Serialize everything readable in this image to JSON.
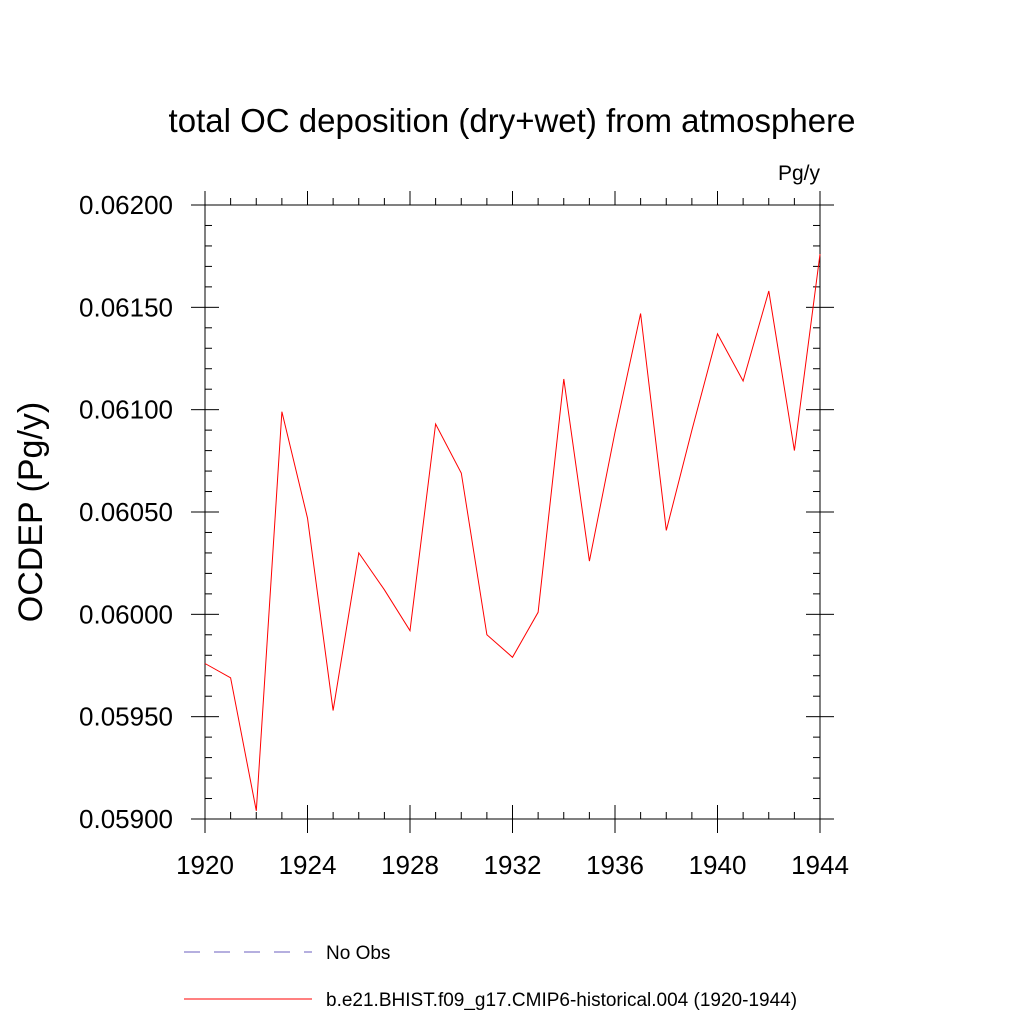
{
  "chart_data": {
    "type": "line",
    "title": "total OC deposition (dry+wet) from atmosphere",
    "units": "Pg/y",
    "ylabel": "OCDEP  (Pg/y)",
    "xlabel": "",
    "xlim": [
      1920,
      1944
    ],
    "ylim": [
      0.059,
      0.062
    ],
    "x_ticks": [
      1920,
      1924,
      1928,
      1932,
      1936,
      1940,
      1944
    ],
    "x_tick_labels": [
      "1920",
      "1924",
      "1928",
      "1932",
      "1936",
      "1940",
      "1944"
    ],
    "y_ticks": [
      0.059,
      0.0595,
      0.06,
      0.0605,
      0.061,
      0.0615,
      0.062
    ],
    "y_tick_labels": [
      "0.05900",
      "0.05950",
      "0.06000",
      "0.06050",
      "0.06100",
      "0.06150",
      "0.06200"
    ],
    "grid": false,
    "legend_position": "bottom",
    "series": [
      {
        "name": "b.e21.BHIST.f09_g17.CMIP6-historical.004 (1920-1944)",
        "color": "#ff0000",
        "style": "solid",
        "x": [
          1920,
          1921,
          1922,
          1923,
          1924,
          1925,
          1926,
          1927,
          1928,
          1929,
          1930,
          1931,
          1932,
          1933,
          1934,
          1935,
          1936,
          1937,
          1938,
          1939,
          1940,
          1941,
          1942,
          1943,
          1944
        ],
        "values": [
          0.05976,
          0.05969,
          0.05904,
          0.06099,
          0.06047,
          0.05953,
          0.0603,
          0.06012,
          0.05992,
          0.06093,
          0.06069,
          0.0599,
          0.05979,
          0.06001,
          0.06115,
          0.06026,
          0.06089,
          0.06147,
          0.06041,
          0.0609,
          0.06137,
          0.06114,
          0.06158,
          0.0608,
          0.06176
        ]
      }
    ],
    "legend": [
      {
        "label": "No Obs",
        "color": "#6b5fbf",
        "style": "dashed"
      },
      {
        "label": "b.e21.BHIST.f09_g17.CMIP6-historical.004 (1920-1944)",
        "color": "#ff0000",
        "style": "solid"
      }
    ]
  }
}
